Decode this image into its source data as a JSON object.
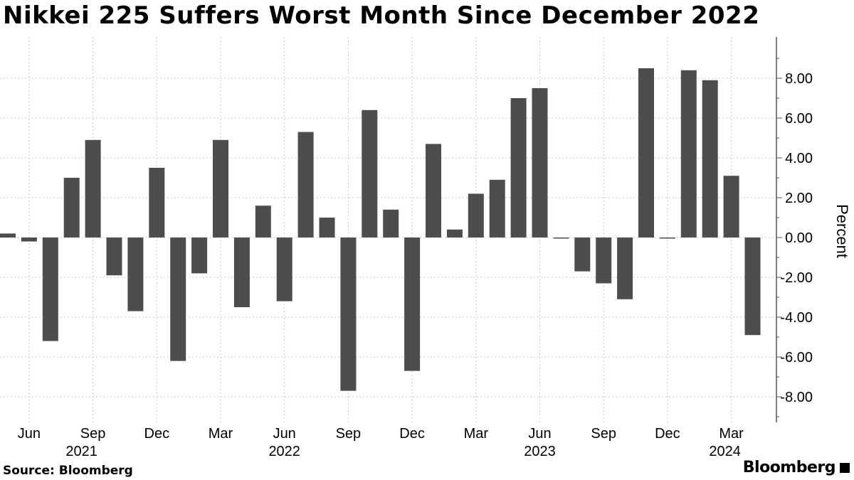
{
  "title": "Nikkei 225 Suffers Worst Month Since December 2022",
  "source": "Source: Bloomberg",
  "brand": "Bloomberg",
  "chart_data": {
    "type": "bar",
    "title": "Nikkei 225 Suffers Worst Month Since December 2022",
    "xlabel": "",
    "ylabel": "Percent",
    "ylim": [
      -9.2,
      10
    ],
    "yticks": [
      8,
      6,
      4,
      2,
      0,
      -2,
      -4,
      -6,
      -8
    ],
    "ytick_labels": [
      "8.00",
      "6.00",
      "4.00",
      "2.00",
      "0.00",
      "-2.00",
      "-4.00",
      "-6.00",
      "-8.00"
    ],
    "grid": true,
    "bar_color": "#4d4d4d",
    "categories": [
      "2021-05",
      "2021-06",
      "2021-07",
      "2021-08",
      "2021-09",
      "2021-10",
      "2021-11",
      "2021-12",
      "2022-01",
      "2022-02",
      "2022-03",
      "2022-04",
      "2022-05",
      "2022-06",
      "2022-07",
      "2022-08",
      "2022-09",
      "2022-10",
      "2022-11",
      "2022-12",
      "2023-01",
      "2023-02",
      "2023-03",
      "2023-04",
      "2023-05",
      "2023-06",
      "2023-07",
      "2023-08",
      "2023-09",
      "2023-10",
      "2023-11",
      "2023-12",
      "2024-01",
      "2024-02",
      "2024-03",
      "2024-04"
    ],
    "values": [
      0.2,
      -0.2,
      -5.2,
      3.0,
      4.9,
      -1.9,
      -3.7,
      3.5,
      -6.2,
      -1.8,
      4.9,
      -3.5,
      1.6,
      -3.2,
      5.3,
      1.0,
      -7.7,
      6.4,
      1.4,
      -6.7,
      4.7,
      0.4,
      2.2,
      2.9,
      7.0,
      7.5,
      -0.05,
      -1.7,
      -2.3,
      -3.1,
      8.5,
      -0.05,
      8.4,
      7.9,
      3.1,
      -4.9
    ],
    "x_tick_labels": [
      {
        "month": "Jun",
        "year": "2021",
        "category": "2021-06"
      },
      {
        "month": "Sep",
        "year": "",
        "category": "2021-09"
      },
      {
        "month": "Dec",
        "year": "",
        "category": "2021-12"
      },
      {
        "month": "Mar",
        "year": "",
        "category": "2022-03"
      },
      {
        "month": "Jun",
        "year": "2022",
        "category": "2022-06"
      },
      {
        "month": "Sep",
        "year": "",
        "category": "2022-09"
      },
      {
        "month": "Dec",
        "year": "",
        "category": "2022-12"
      },
      {
        "month": "Mar",
        "year": "",
        "category": "2023-03"
      },
      {
        "month": "Jun",
        "year": "2023",
        "category": "2023-06"
      },
      {
        "month": "Sep",
        "year": "",
        "category": "2023-09"
      },
      {
        "month": "Dec",
        "year": "",
        "category": "2023-12"
      },
      {
        "month": "Mar",
        "year": "2024",
        "category": "2024-03"
      }
    ],
    "year_label_positions": [
      {
        "year": "2021",
        "category": "2021-09"
      },
      {
        "year": "2022",
        "category": "2022-06"
      },
      {
        "year": "2023",
        "category": "2023-06"
      },
      {
        "year": "2024",
        "category": "2024-03"
      }
    ]
  }
}
